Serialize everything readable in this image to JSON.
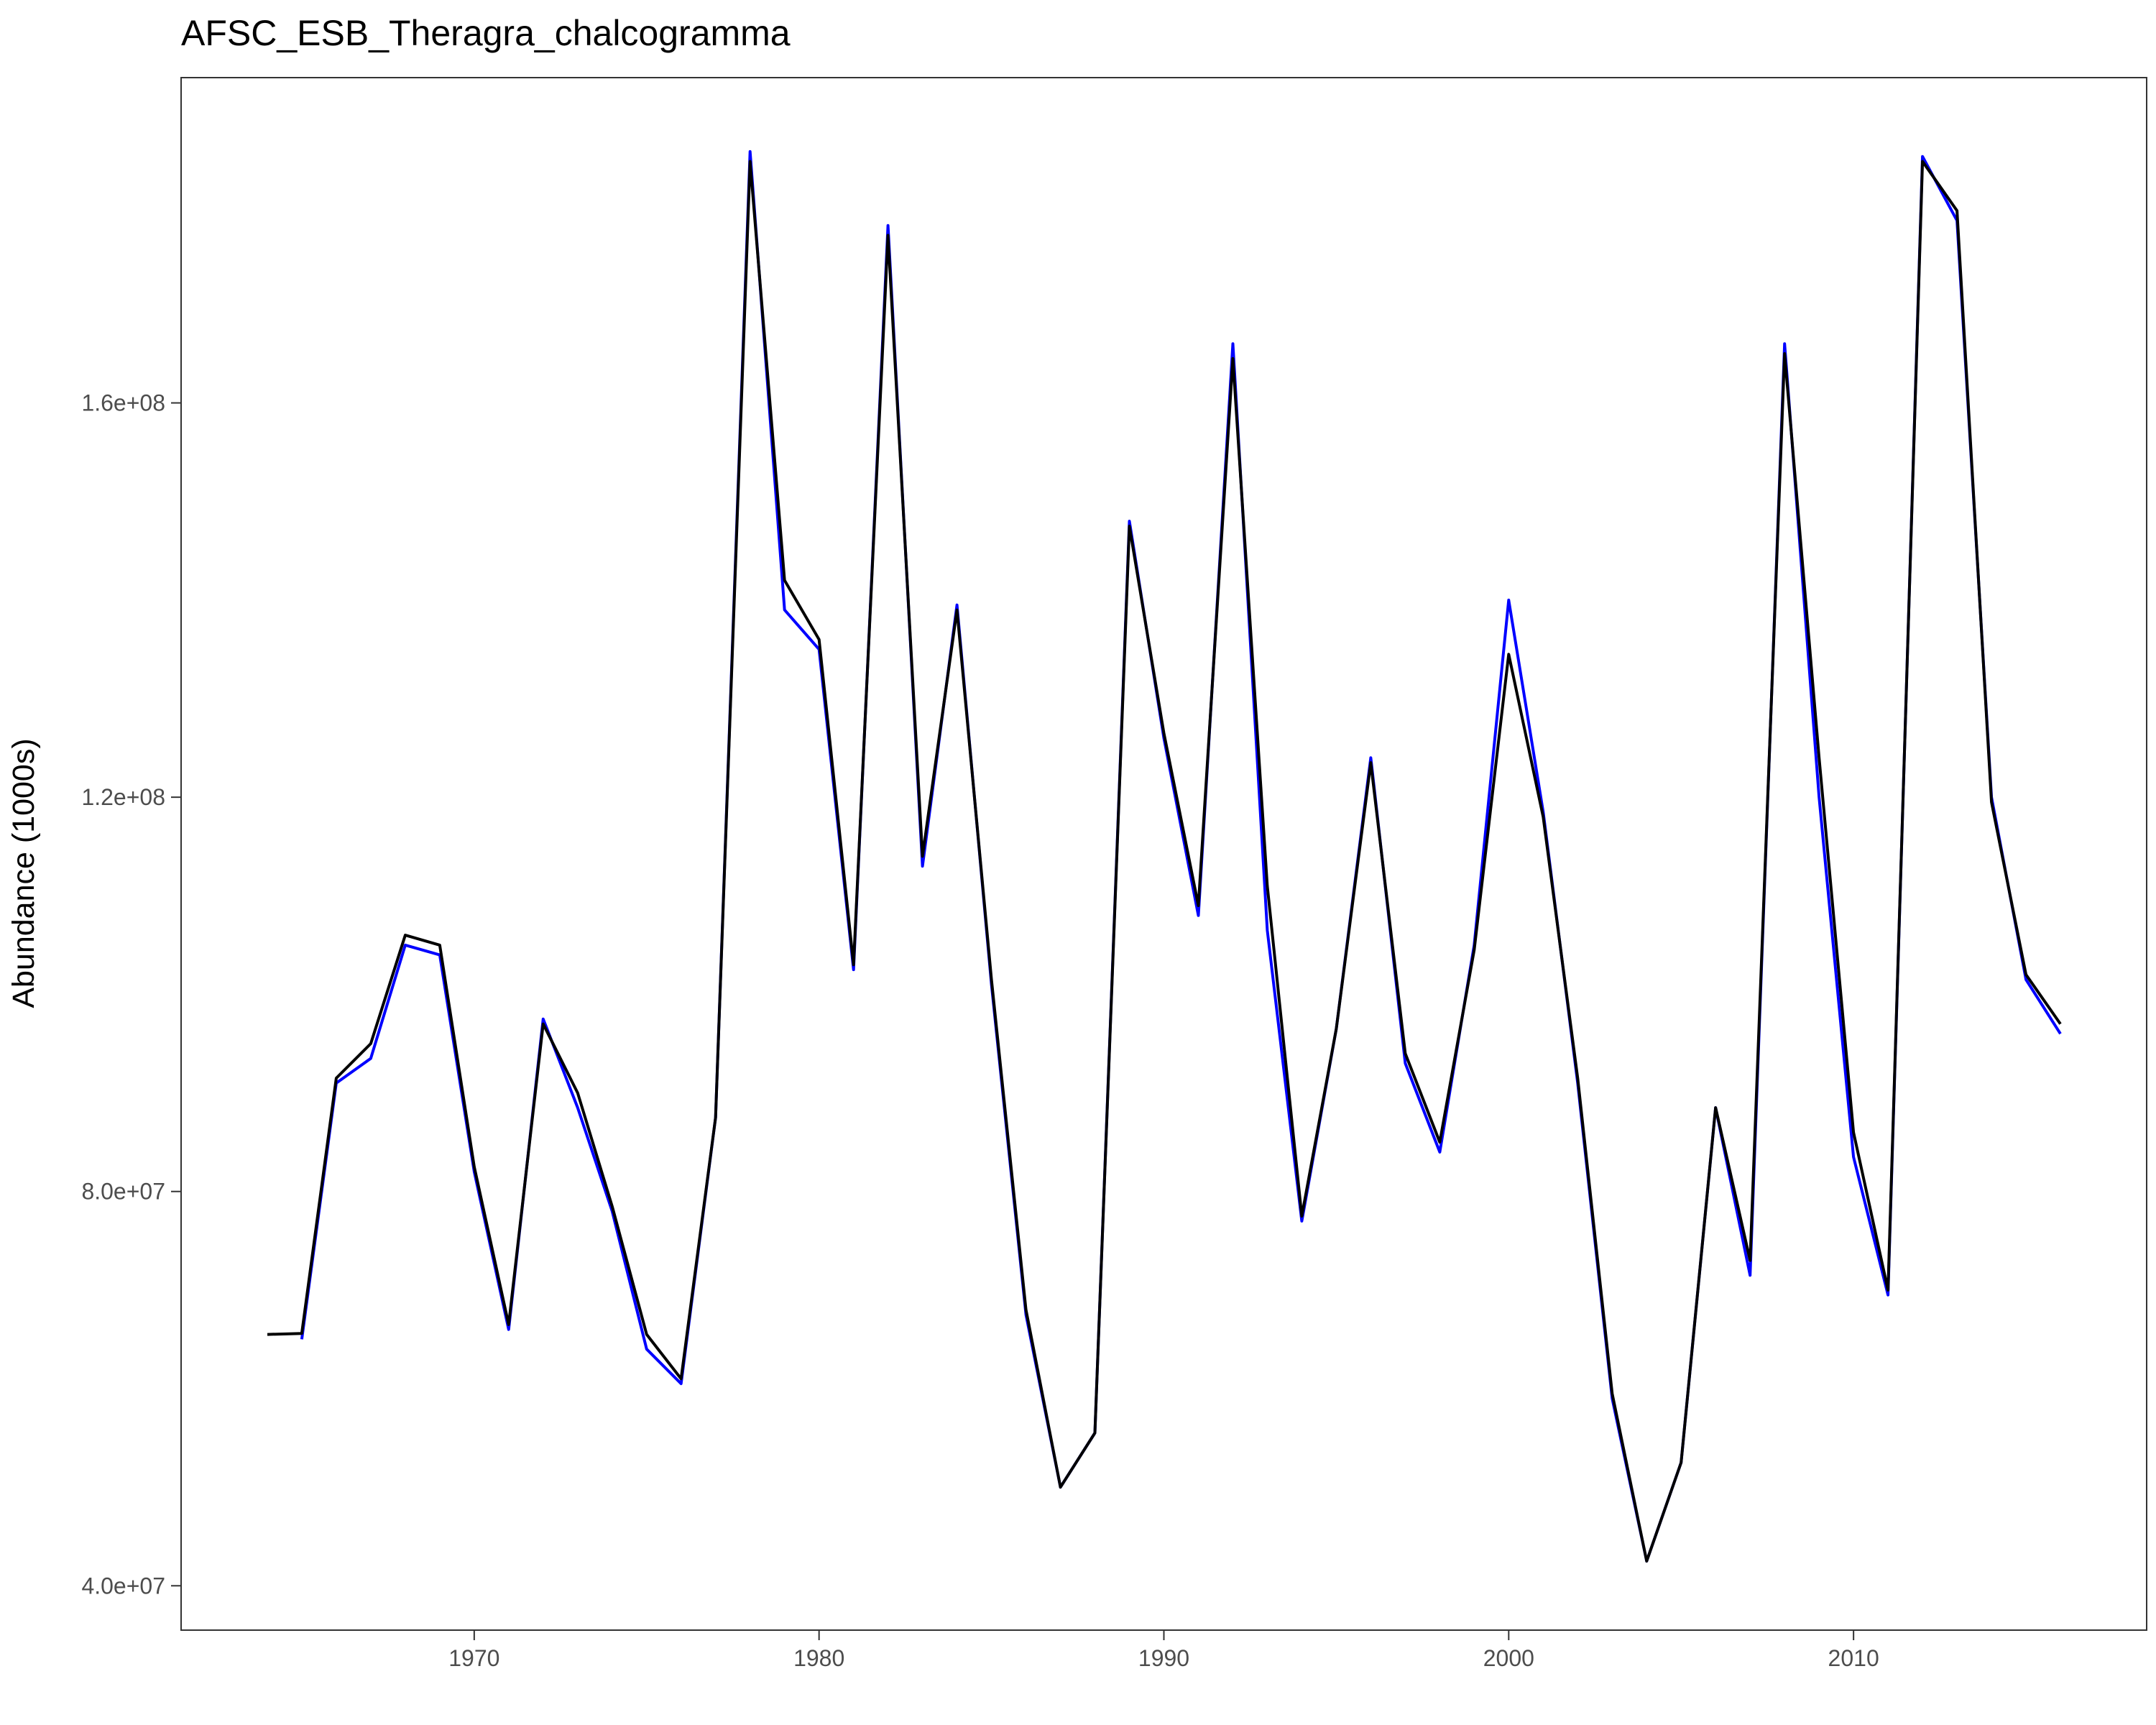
{
  "chart_data": {
    "type": "line",
    "title": "AFSC_ESB_Theragra_chalcogramma",
    "xlabel": "",
    "ylabel": "Abundance (1000s)",
    "xlim": [
      1961.5,
      2018.5
    ],
    "ylim": [
      35500000,
      193000000
    ],
    "grid": false,
    "x_ticks": [
      1970,
      1980,
      1990,
      2000,
      2010
    ],
    "x_tick_labels": [
      "1970",
      "1980",
      "1990",
      "2000",
      "2010"
    ],
    "y_ticks": [
      40000000,
      80000000,
      120000000,
      160000000
    ],
    "y_tick_labels": [
      "4.0e+07",
      "8.0e+07",
      "1.2e+08",
      "1.6e+08"
    ],
    "series": [
      {
        "color": "#0000ff",
        "x": [
          1965,
          1966,
          1967,
          1968,
          1969,
          1970,
          1971,
          1972,
          1973,
          1974,
          1975,
          1976,
          1977,
          1978,
          1979,
          1980,
          1981,
          1982,
          1983,
          1984,
          1985,
          1986,
          1987,
          1988,
          1989,
          1990,
          1991,
          1992,
          1993,
          1994,
          1995,
          1996,
          1997,
          1998,
          1999,
          2000,
          2001,
          2002,
          2003,
          2004,
          2005,
          2006,
          2007,
          2008,
          2009,
          2010,
          2011,
          2012,
          2013,
          2014,
          2015,
          2016
        ],
        "y": [
          65000000,
          91000000,
          93500000,
          105000000,
          104000000,
          82000000,
          66000000,
          97500000,
          88500000,
          78000000,
          64000000,
          60500000,
          87500000,
          185500000,
          139000000,
          135000000,
          102500000,
          178000000,
          113000000,
          139500000,
          101000000,
          67500000,
          50000000,
          55500000,
          148000000,
          126000000,
          108000000,
          166000000,
          106500000,
          77000000,
          96500000,
          124000000,
          93000000,
          84000000,
          105000000,
          140000000,
          118500000,
          91000000,
          59000000,
          42500000,
          52500000,
          88500000,
          71500000,
          166000000,
          120000000,
          83500000,
          69500000,
          185000000,
          178500000,
          120000000,
          101500000,
          96000000
        ]
      },
      {
        "color": "#000000",
        "x": [
          1964,
          1965,
          1966,
          1967,
          1968,
          1969,
          1970,
          1971,
          1972,
          1973,
          1974,
          1975,
          1976,
          1977,
          1978,
          1979,
          1980,
          1981,
          1982,
          1983,
          1984,
          1985,
          1986,
          1987,
          1988,
          1989,
          1990,
          1991,
          1992,
          1993,
          1994,
          1995,
          1996,
          1997,
          1998,
          1999,
          2000,
          2001,
          2002,
          2003,
          2004,
          2005,
          2006,
          2007,
          2008,
          2009,
          2010,
          2011,
          2012,
          2013,
          2014,
          2015,
          2016
        ],
        "y": [
          65500000,
          65600000,
          91500000,
          95000000,
          106000000,
          105000000,
          82500000,
          66500000,
          97000000,
          90000000,
          78500000,
          65500000,
          61000000,
          87500000,
          184500000,
          142000000,
          136000000,
          103000000,
          177000000,
          114000000,
          139000000,
          101500000,
          68000000,
          50000000,
          55500000,
          147500000,
          126500000,
          109000000,
          164500000,
          111000000,
          77500000,
          96500000,
          123500000,
          94000000,
          85000000,
          104500000,
          134500000,
          118000000,
          91500000,
          59500000,
          42500000,
          52500000,
          88500000,
          73000000,
          165000000,
          124000000,
          86000000,
          70000000,
          184500000,
          179500000,
          119500000,
          102000000,
          97000000
        ]
      }
    ]
  }
}
